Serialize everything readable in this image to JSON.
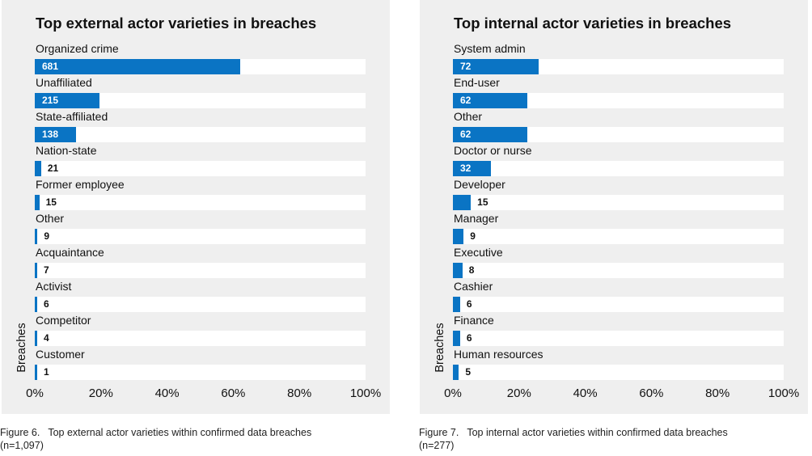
{
  "chart_data": [
    {
      "type": "bar",
      "orientation": "horizontal",
      "title": "Top external actor varieties in breaches",
      "ylabel": "Breaches",
      "xlabel": "",
      "xlim": [
        0,
        100
      ],
      "x_ticks": [
        "0%",
        "20%",
        "40%",
        "60%",
        "80%",
        "100%"
      ],
      "total": 1097,
      "categories": [
        "Organized crime",
        "Unaffiliated",
        "State-affiliated",
        "Nation-state",
        "Former employee",
        "Other",
        "Acquaintance",
        "Activist",
        "Competitor",
        "Customer"
      ],
      "values": [
        681,
        215,
        138,
        21,
        15,
        9,
        7,
        6,
        4,
        1
      ],
      "value_labels": [
        "681",
        "215",
        "138",
        "21",
        "15",
        "9",
        "7",
        "6",
        "4",
        "1"
      ],
      "bar_color": "#0a74c4",
      "grid": false,
      "caption_number": "Figure 6.",
      "caption_text": "Top external actor varieties within confirmed data breaches",
      "caption_n": "(n=1,097)"
    },
    {
      "type": "bar",
      "orientation": "horizontal",
      "title": "Top internal actor varieties in breaches",
      "ylabel": "Breaches",
      "xlabel": "",
      "xlim": [
        0,
        100
      ],
      "x_ticks": [
        "0%",
        "20%",
        "40%",
        "60%",
        "80%",
        "100%"
      ],
      "total": 277,
      "categories": [
        "System admin",
        "End-user",
        "Other",
        "Doctor or nurse",
        "Developer",
        "Manager",
        "Executive",
        "Cashier",
        "Finance",
        "Human resources"
      ],
      "values": [
        72,
        62,
        62,
        32,
        15,
        9,
        8,
        6,
        6,
        5
      ],
      "value_labels": [
        "72",
        "62",
        "62",
        "32",
        "15",
        "9",
        "8",
        "6",
        "6",
        "5"
      ],
      "bar_color": "#0a74c4",
      "grid": false,
      "caption_number": "Figure 7.",
      "caption_text": "Top internal actor varieties within confirmed data breaches",
      "caption_n": "(n=277)"
    }
  ]
}
